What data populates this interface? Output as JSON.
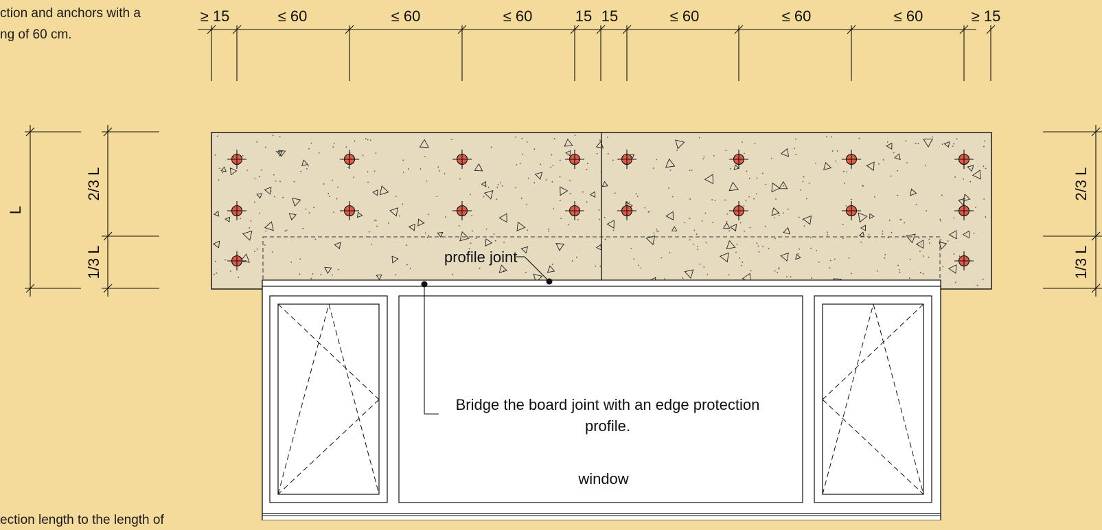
{
  "notes": {
    "top_left_line1": "ction and anchors with a",
    "top_left_line2": "ng of 60 cm.",
    "bottom_left": "ection length to the length of"
  },
  "top_dimensions": [
    "≥ 15",
    "≤ 60",
    "≤ 60",
    "≤ 60",
    "15",
    "15",
    "≤ 60",
    "≤ 60",
    "≤ 60",
    "≥ 15"
  ],
  "left_dimensions": {
    "overall": "L",
    "upper": "2/3 L",
    "lower": "1/3 L"
  },
  "right_dimensions": {
    "upper": "2/3 L",
    "lower": "1/3 L"
  },
  "labels": {
    "profile_joint": "profile joint",
    "bridge_line1": "Bridge the board joint with an edge protection",
    "bridge_line2": "profile.",
    "window": "window"
  },
  "colors": {
    "background": "#f5db9b",
    "board_fill": "#e6dbbf",
    "anchor_fill": "#e05a47",
    "line": "#111111"
  }
}
